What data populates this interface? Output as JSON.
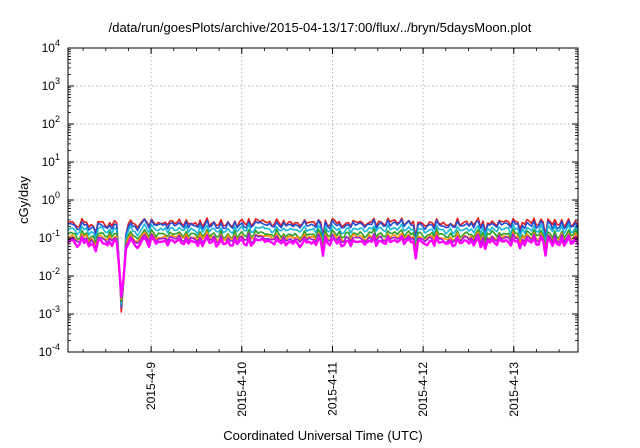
{
  "chart_data": {
    "type": "line",
    "title": "/data/run/goesPlots/archive/2015-04-13/17:00/flux/../bryn/5daysMoon.plot",
    "xlabel": "Coordinated Universal Time (UTC)",
    "ylabel": "cGy/day",
    "yscale": "log",
    "ylim_exponents": [
      -4,
      4
    ],
    "y_ticks": [
      {
        "base": "10",
        "exp": "-4"
      },
      {
        "base": "10",
        "exp": "-3"
      },
      {
        "base": "10",
        "exp": "-2"
      },
      {
        "base": "10",
        "exp": "-1"
      },
      {
        "base": "10",
        "exp": "0"
      },
      {
        "base": "10",
        "exp": "1"
      },
      {
        "base": "10",
        "exp": "2"
      },
      {
        "base": "10",
        "exp": "3"
      },
      {
        "base": "10",
        "exp": "4"
      }
    ],
    "x_range_days": [
      "2015-04-08 02:00",
      "2015-04-13 17:00"
    ],
    "x_ticks": [
      "2015-4-9",
      "2015-4-10",
      "2015-4-11",
      "2015-4-12",
      "2015-4-13"
    ],
    "grid": true,
    "dip": {
      "start": "2015-04-08 15:00",
      "end": "2015-04-08 17:30",
      "min_value": 0.0006
    },
    "series": [
      {
        "color": "#e41a1c",
        "base": 0.24,
        "values_note": "~0.2-0.3 cGy/day"
      },
      {
        "color": "#1f4fd8",
        "base": 0.21
      },
      {
        "color": "#17b8d8",
        "base": 0.16
      },
      {
        "color": "#2ca02c",
        "base": 0.12
      },
      {
        "color": "#ff8c00",
        "base": 0.1
      },
      {
        "color": "#9b1fd8",
        "base": 0.09
      },
      {
        "color": "#ff00ff",
        "base": 0.075
      }
    ],
    "colors": {
      "axis": "#000000",
      "grid": "#a0a0a0"
    }
  }
}
